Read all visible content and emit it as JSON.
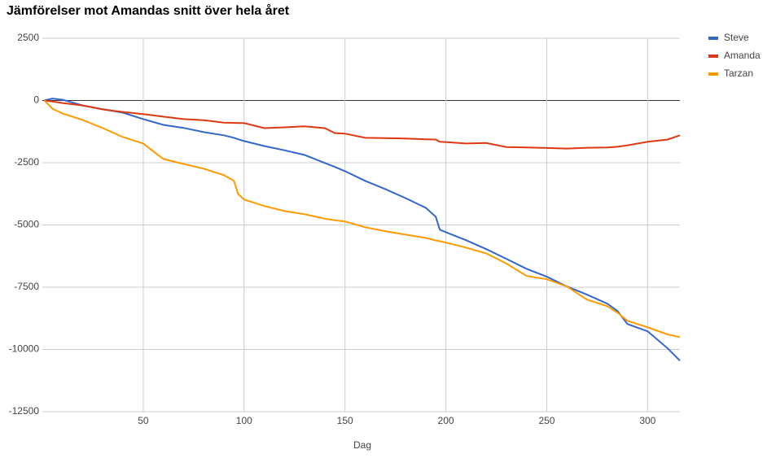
{
  "chart_data": {
    "type": "line",
    "title": "Jämförelser mot Amandas snitt över hela året",
    "x_label": "Dag",
    "x": [
      1,
      5,
      10,
      20,
      30,
      40,
      50,
      60,
      70,
      80,
      90,
      95,
      97,
      100,
      110,
      120,
      130,
      140,
      145,
      150,
      160,
      170,
      180,
      190,
      195,
      197,
      200,
      210,
      220,
      230,
      240,
      250,
      260,
      270,
      280,
      285,
      290,
      300,
      310,
      316
    ],
    "series": [
      {
        "name": "Steve",
        "color": "#3366cc",
        "values": [
          0,
          80,
          30,
          -200,
          -350,
          -490,
          -750,
          -980,
          -1100,
          -1270,
          -1400,
          -1500,
          -1560,
          -1630,
          -1830,
          -2000,
          -2190,
          -2510,
          -2670,
          -2840,
          -3230,
          -3560,
          -3920,
          -4310,
          -4670,
          -5190,
          -5290,
          -5610,
          -5970,
          -6360,
          -6760,
          -7080,
          -7470,
          -7800,
          -8160,
          -8450,
          -8980,
          -9270,
          -9960,
          -10450
        ]
      },
      {
        "name": "Amanda",
        "color": "#dc3912",
        "values": [
          0,
          -40,
          -100,
          -200,
          -360,
          -460,
          -550,
          -650,
          -750,
          -790,
          -890,
          -900,
          -905,
          -910,
          -1110,
          -1080,
          -1040,
          -1110,
          -1310,
          -1330,
          -1500,
          -1510,
          -1530,
          -1560,
          -1570,
          -1660,
          -1670,
          -1730,
          -1710,
          -1870,
          -1890,
          -1910,
          -1930,
          -1900,
          -1890,
          -1860,
          -1800,
          -1660,
          -1570,
          -1400
        ]
      },
      {
        "name": "Tarzan",
        "color": "#ff9900",
        "values": [
          0,
          -330,
          -520,
          -780,
          -1110,
          -1470,
          -1730,
          -2350,
          -2550,
          -2740,
          -3000,
          -3230,
          -3750,
          -3980,
          -4240,
          -4440,
          -4570,
          -4750,
          -4810,
          -4860,
          -5090,
          -5250,
          -5390,
          -5520,
          -5620,
          -5650,
          -5710,
          -5910,
          -6140,
          -6550,
          -7050,
          -7180,
          -7470,
          -8000,
          -8260,
          -8520,
          -8850,
          -9110,
          -9400,
          -9500
        ]
      }
    ],
    "xlim": [
      0,
      316
    ],
    "xticks": [
      50,
      100,
      150,
      200,
      250,
      300
    ],
    "ylim": [
      -12500,
      2500
    ],
    "yticks": [
      2500,
      0,
      -2500,
      -5000,
      -7500,
      -10000,
      -12500
    ],
    "grid": true,
    "legend": "right"
  }
}
